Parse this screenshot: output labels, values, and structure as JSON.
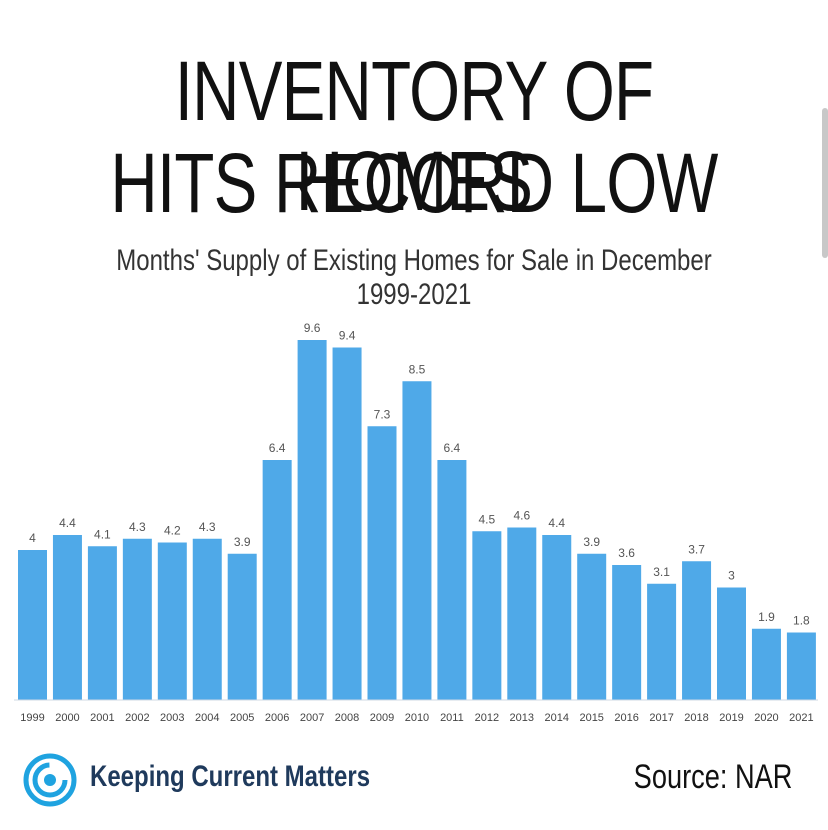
{
  "header": {
    "title_line1": "INVENTORY OF HOMES",
    "title_line2": "HITS RECORD LOW",
    "subtitle": "Months' Supply of Existing Homes for Sale in December 1999-2021"
  },
  "footer": {
    "brand": "Keeping Current Matters",
    "source": "Source: NAR",
    "logo_icon": "swirl-logo-icon"
  },
  "colors": {
    "bar": "#4fa9e8",
    "brand": "#1f3a5c",
    "logo": "#1fa3e0"
  },
  "chart_data": {
    "type": "bar",
    "title": "Months' Supply of Existing Homes for Sale in December 1999-2021",
    "xlabel": "",
    "ylabel": "",
    "categories": [
      "1999",
      "2000",
      "2001",
      "2002",
      "2003",
      "2004",
      "2005",
      "2006",
      "2007",
      "2008",
      "2009",
      "2010",
      "2011",
      "2012",
      "2013",
      "2014",
      "2015",
      "2016",
      "2017",
      "2018",
      "2019",
      "2020",
      "2021"
    ],
    "values": [
      4,
      4.4,
      4.1,
      4.3,
      4.2,
      4.3,
      3.9,
      6.4,
      9.6,
      9.4,
      7.3,
      8.5,
      6.4,
      4.5,
      4.6,
      4.4,
      3.9,
      3.6,
      3.1,
      3.7,
      3,
      1.9,
      1.8
    ],
    "data_labels": [
      "4",
      "4.4",
      "4.1",
      "4.3",
      "4.2",
      "4.3",
      "3.9",
      "6.4",
      "9.6",
      "9.4",
      "7.3",
      "8.5",
      "6.4",
      "4.5",
      "4.6",
      "4.4",
      "3.9",
      "3.6",
      "3.1",
      "3.7",
      "3",
      "1.9",
      "1.8"
    ],
    "ylim": [
      0,
      10
    ],
    "grid": false,
    "legend": "none"
  }
}
